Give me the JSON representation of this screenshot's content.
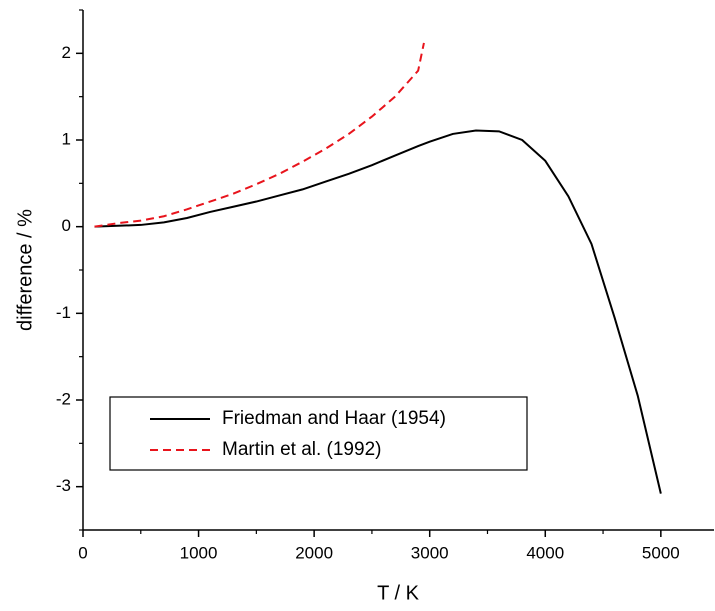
{
  "chart_data": {
    "type": "line",
    "xlabel": "T / K",
    "ylabel": "difference / %",
    "xlim": [
      0,
      5460
    ],
    "ylim": [
      -3.5,
      2.5
    ],
    "xticks": [
      0,
      1000,
      2000,
      3000,
      4000,
      5000
    ],
    "yticks": [
      -3,
      -2,
      -1,
      0,
      1,
      2
    ],
    "xminorticks": [
      500,
      1500,
      2500,
      3500,
      4500
    ],
    "yminorticks": [
      -3.5,
      -2.5,
      -1.5,
      -0.5,
      0.5,
      1.5,
      2.5
    ],
    "legend": "lower left",
    "series": [
      {
        "name": "Friedman and Haar (1954)",
        "color": "#000000",
        "dash": "solid",
        "x": [
          100,
          300,
          500,
          700,
          900,
          1100,
          1300,
          1500,
          1700,
          1900,
          2100,
          2300,
          2500,
          2700,
          2900,
          3000,
          3200,
          3400,
          3600,
          3800,
          4000,
          4200,
          4400,
          4600,
          4800,
          5000
        ],
        "values": [
          0,
          0.01,
          0.02,
          0.05,
          0.1,
          0.17,
          0.23,
          0.29,
          0.36,
          0.43,
          0.52,
          0.61,
          0.71,
          0.82,
          0.93,
          0.98,
          1.07,
          1.11,
          1.1,
          1.0,
          0.76,
          0.35,
          -0.2,
          -1.05,
          -1.95,
          -3.08
        ]
      },
      {
        "name": "Martin et al. (1992)",
        "color": "#e8141c",
        "dash": "dashed",
        "x": [
          100,
          300,
          500,
          700,
          900,
          1100,
          1300,
          1500,
          1700,
          1900,
          2100,
          2300,
          2500,
          2700,
          2900,
          2950
        ],
        "values": [
          0,
          0.04,
          0.07,
          0.12,
          0.2,
          0.29,
          0.38,
          0.49,
          0.61,
          0.75,
          0.9,
          1.07,
          1.27,
          1.5,
          1.8,
          2.12
        ]
      }
    ]
  }
}
